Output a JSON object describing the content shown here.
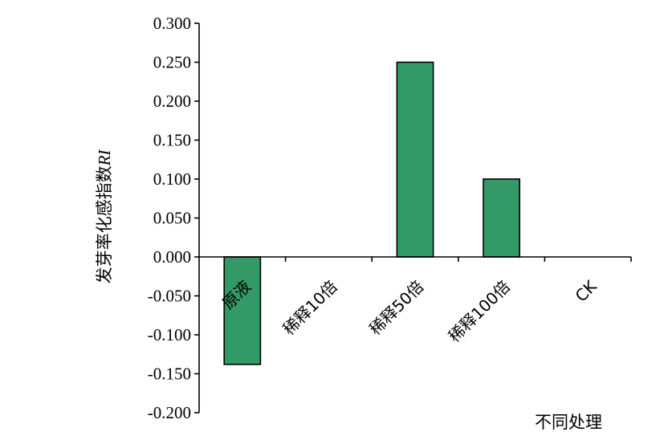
{
  "chart_data": {
    "type": "bar",
    "categories": [
      "原液",
      "稀释10倍",
      "稀释50倍",
      "稀释100倍",
      "CK"
    ],
    "values": [
      -0.138,
      0.0,
      0.25,
      0.1,
      0.0
    ],
    "ylabel_main": "发芽率化感指数",
    "ylabel_italic": "RI",
    "xlabel": "不同处理",
    "ylim": [
      -0.2,
      0.3
    ],
    "yticks": [
      "0.300",
      "0.250",
      "0.200",
      "0.150",
      "0.100",
      "0.050",
      "0.000",
      "-0.050",
      "-0.100",
      "-0.150",
      "-0.200"
    ],
    "bar_color": "#339966",
    "grid": false,
    "legend": "none"
  }
}
